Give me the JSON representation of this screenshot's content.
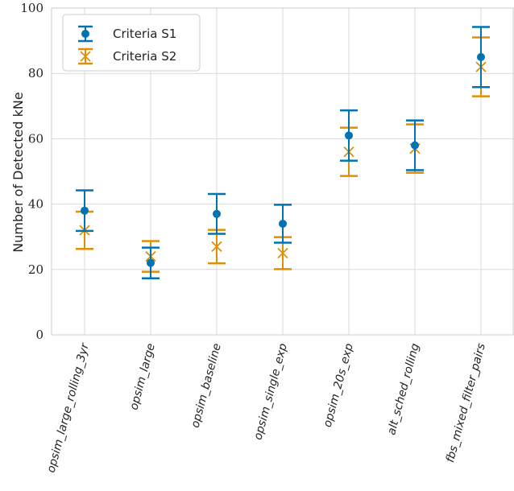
{
  "chart_data": {
    "type": "scatter",
    "title": "",
    "xlabel": "",
    "ylabel": "Number of Detected kNe",
    "ylim": [
      0,
      100
    ],
    "yticks": [
      0,
      20,
      40,
      60,
      80,
      100
    ],
    "grid": true,
    "legend_position": "top-left",
    "categories": [
      "opsim_large_rolling_3yr",
      "opsim_large",
      "opsim_baseline",
      "opsim_single_exp",
      "opsim_20s_exp",
      "alt_sched_rolling",
      "fbs_mixed_filter_pairs"
    ],
    "series": [
      {
        "name": "Criteria S1",
        "marker": "circle",
        "color": "#0173b2",
        "values": [
          38,
          22,
          37,
          34,
          61,
          58,
          85
        ],
        "lower": [
          31.8,
          17.3,
          30.9,
          28.2,
          53.3,
          50.4,
          75.8
        ],
        "upper": [
          44.2,
          26.7,
          43.1,
          39.8,
          68.7,
          65.6,
          94.2
        ]
      },
      {
        "name": "Criteria S2",
        "marker": "x",
        "color": "#de8f05",
        "values": [
          32,
          24,
          27,
          25,
          56,
          57,
          82
        ],
        "lower": [
          26.3,
          19.3,
          21.9,
          20.1,
          48.6,
          49.6,
          73.0
        ],
        "upper": [
          37.7,
          28.7,
          32.1,
          29.9,
          63.4,
          64.4,
          91.0
        ]
      }
    ]
  }
}
